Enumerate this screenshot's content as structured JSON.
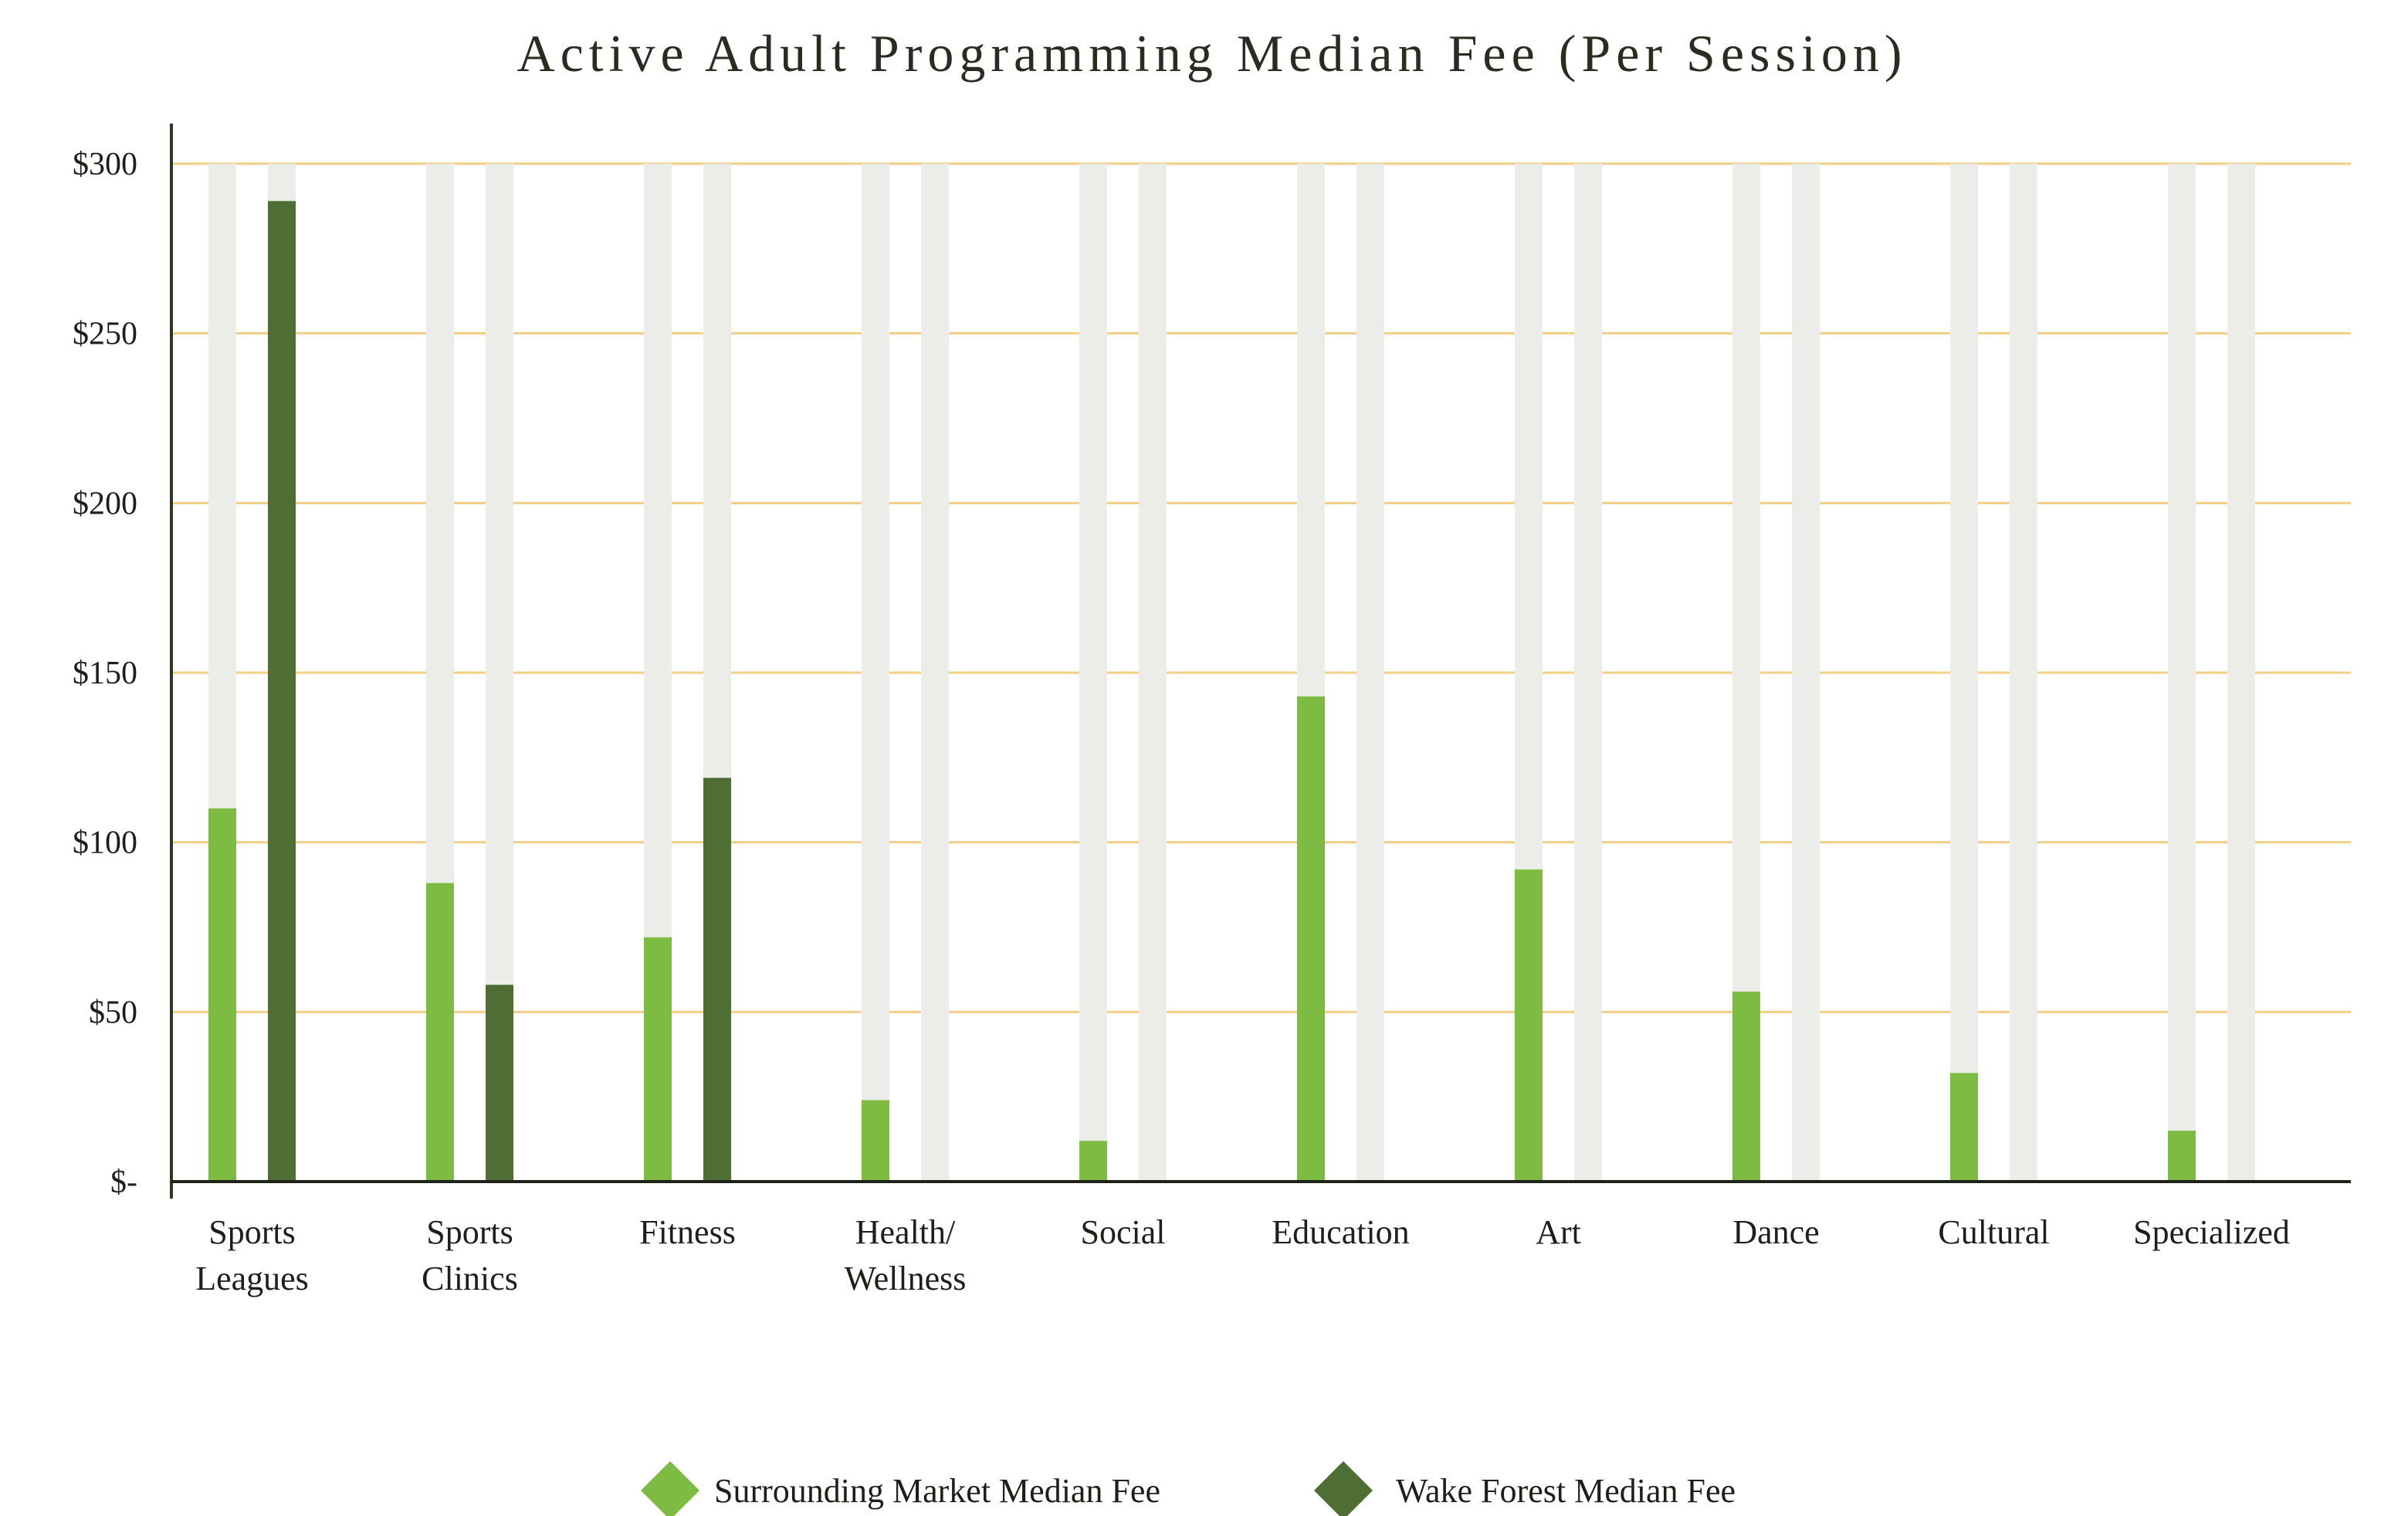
{
  "chart_data": {
    "type": "bar",
    "title": "Active Adult Programming Median Fee (Per Session)",
    "xlabel": "",
    "ylabel": "",
    "ylim": [
      0,
      300
    ],
    "yticks": [
      0,
      50,
      100,
      150,
      200,
      250,
      300
    ],
    "ytick_labels": [
      "$-",
      "$50",
      "$100",
      "$150",
      "$200",
      "$250",
      "$300"
    ],
    "categories": [
      "Sports Leagues",
      "Sports Clinics",
      "Fitness",
      "Health/ Wellness",
      "Social",
      "Education",
      "Art",
      "Dance",
      "Cultural",
      "Specialized"
    ],
    "category_lines": [
      [
        "Sports",
        "Leagues"
      ],
      [
        "Sports",
        "Clinics"
      ],
      [
        "Fitness"
      ],
      [
        "Health/",
        "Wellness"
      ],
      [
        "Social"
      ],
      [
        "Education"
      ],
      [
        "Art"
      ],
      [
        "Dance"
      ],
      [
        "Cultural"
      ],
      [
        "Specialized"
      ]
    ],
    "series": [
      {
        "name": "Surrounding Market Median Fee",
        "color": "#7dbb42",
        "values": [
          110,
          88,
          72,
          24,
          12,
          143,
          92,
          56,
          32,
          15
        ]
      },
      {
        "name": "Wake Forest Median Fee",
        "color": "#4e6e33",
        "values": [
          289,
          58,
          119,
          null,
          null,
          null,
          null,
          null,
          null,
          null
        ]
      }
    ],
    "grid": true,
    "grid_color": "#f2cf86",
    "track_color": "#ecede8",
    "legend_position": "bottom-center"
  }
}
